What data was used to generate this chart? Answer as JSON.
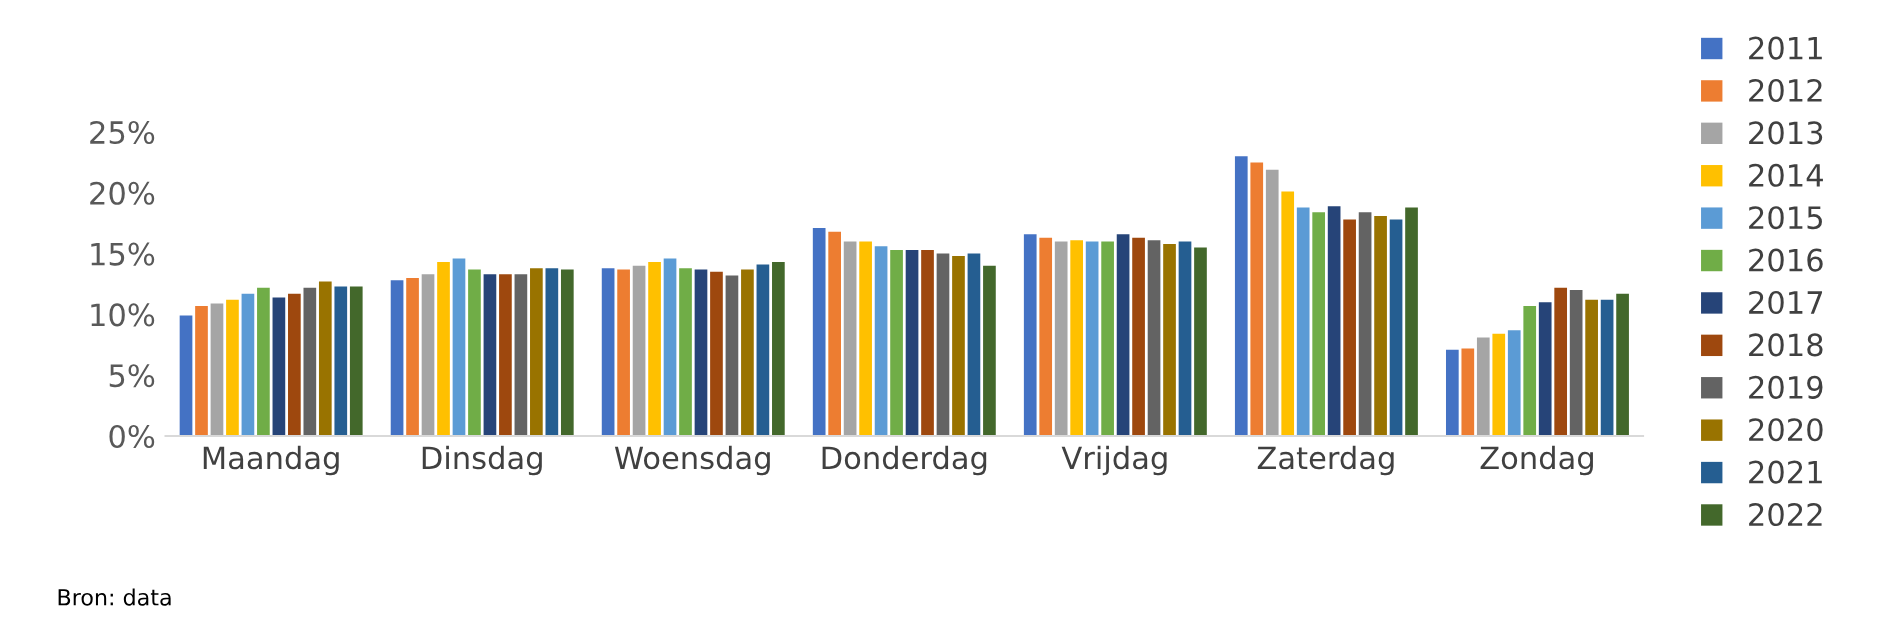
{
  "chart_data": {
    "type": "bar",
    "categories": [
      "Maandag",
      "Dinsdag",
      "Woensdag",
      "Donderdag",
      "Vrijdag",
      "Zaterdag",
      "Zondag"
    ],
    "series": [
      {
        "name": "2011",
        "color": "#4472c4",
        "values": [
          9.9,
          12.8,
          13.8,
          17.1,
          16.6,
          23.0,
          7.1
        ]
      },
      {
        "name": "2012",
        "color": "#ed7d31",
        "values": [
          10.7,
          13.0,
          13.7,
          16.8,
          16.3,
          22.5,
          7.2
        ]
      },
      {
        "name": "2013",
        "color": "#a5a5a5",
        "values": [
          10.9,
          13.3,
          14.0,
          16.0,
          16.0,
          21.9,
          8.1
        ]
      },
      {
        "name": "2014",
        "color": "#ffc000",
        "values": [
          11.2,
          14.3,
          14.3,
          16.0,
          16.1,
          20.1,
          8.4
        ]
      },
      {
        "name": "2015",
        "color": "#5b9bd5",
        "values": [
          11.7,
          14.6,
          14.6,
          15.6,
          16.0,
          18.8,
          8.7
        ]
      },
      {
        "name": "2016",
        "color": "#70ad47",
        "values": [
          12.2,
          13.7,
          13.8,
          15.3,
          16.0,
          18.4,
          10.7
        ]
      },
      {
        "name": "2017",
        "color": "#264478",
        "values": [
          11.4,
          13.3,
          13.7,
          15.3,
          16.6,
          18.9,
          11.0
        ]
      },
      {
        "name": "2018",
        "color": "#9e480e",
        "values": [
          11.7,
          13.3,
          13.5,
          15.3,
          16.3,
          17.8,
          12.2
        ]
      },
      {
        "name": "2019",
        "color": "#636363",
        "values": [
          12.2,
          13.3,
          13.2,
          15.0,
          16.1,
          18.4,
          12.0
        ]
      },
      {
        "name": "2020",
        "color": "#997300",
        "values": [
          12.7,
          13.8,
          13.7,
          14.8,
          15.8,
          18.1,
          11.2
        ]
      },
      {
        "name": "2021",
        "color": "#255e91",
        "values": [
          12.3,
          13.8,
          14.1,
          15.0,
          16.0,
          17.8,
          11.2
        ]
      },
      {
        "name": "2022",
        "color": "#43682b",
        "values": [
          12.3,
          13.7,
          14.3,
          14.0,
          15.5,
          18.8,
          11.7
        ]
      }
    ],
    "ylim": [
      0,
      25
    ],
    "yticks": [
      {
        "value": 0,
        "label": "0%"
      },
      {
        "value": 5,
        "label": "5%"
      },
      {
        "value": 10,
        "label": "10%"
      },
      {
        "value": 15,
        "label": "15%"
      },
      {
        "value": 20,
        "label": "20%"
      },
      {
        "value": 25,
        "label": "25%"
      }
    ],
    "grid": false,
    "legend": "right",
    "annotations": [
      "Bron: data"
    ]
  }
}
